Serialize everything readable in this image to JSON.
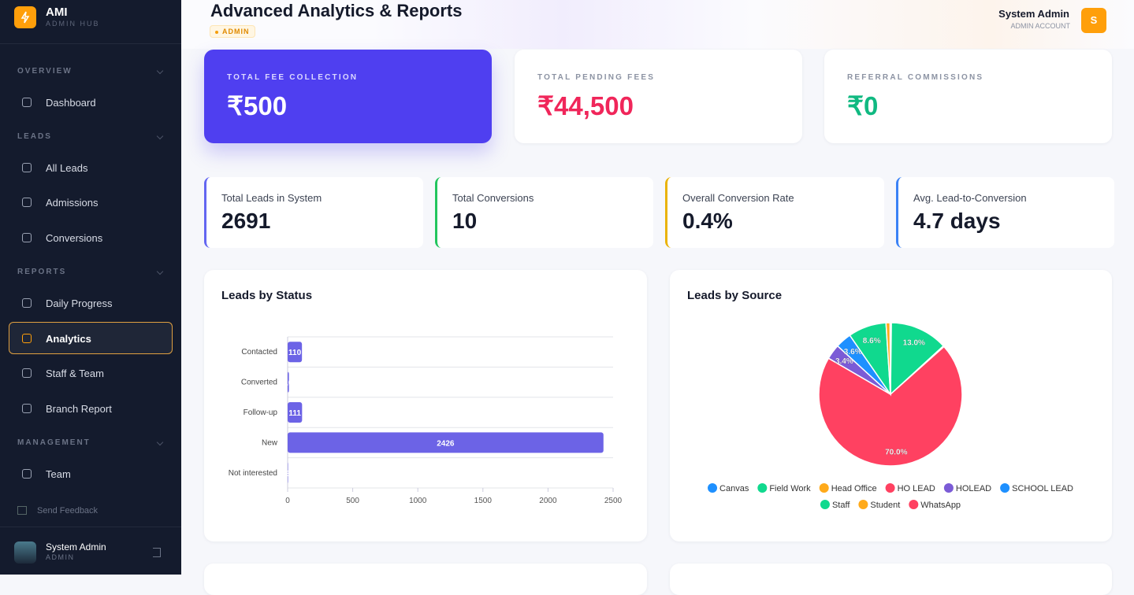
{
  "sidebar": {
    "brand": "AMI",
    "brand_sub": "ADMIN HUB",
    "sections": [
      {
        "title": "OVERVIEW",
        "items": [
          "Dashboard"
        ]
      },
      {
        "title": "LEADS",
        "items": [
          "All Leads",
          "Admissions",
          "Conversions"
        ]
      },
      {
        "title": "REPORTS",
        "items": [
          "Daily Progress",
          "Analytics",
          "Staff & Team",
          "Branch Report"
        ]
      },
      {
        "title": "MANAGEMENT",
        "items": [
          "Team"
        ]
      }
    ],
    "feedback": "Send Feedback",
    "user": {
      "name": "System Admin",
      "role": "ADMIN"
    }
  },
  "header": {
    "title": "Advanced Analytics & Reports",
    "badge": "ADMIN",
    "user_name": "System Admin",
    "user_role": "ADMIN ACCOUNT",
    "avatar": "S"
  },
  "summary_cards": [
    {
      "label": "TOTAL FEE COLLECTION",
      "value": "₹500"
    },
    {
      "label": "TOTAL PENDING FEES",
      "value": "₹44,500"
    },
    {
      "label": "REFERRAL COMMISSIONS",
      "value": "₹0"
    }
  ],
  "stats": [
    {
      "label": "Total Leads in System",
      "value": "2691"
    },
    {
      "label": "Total Conversions",
      "value": "10"
    },
    {
      "label": "Overall Conversion Rate",
      "value": "0.4%"
    },
    {
      "label": "Avg. Lead-to-Conversion",
      "value": "4.7 days"
    }
  ],
  "chart_data": [
    {
      "type": "bar",
      "orientation": "horizontal",
      "title": "Leads by Status",
      "categories": [
        "Contacted",
        "Converted",
        "Follow-up",
        "New",
        "Not interested"
      ],
      "values": [
        110,
        10,
        111,
        2426,
        3
      ],
      "color": "#6c63e6",
      "xlim": [
        0,
        2500
      ],
      "xticks": [
        0,
        500,
        1000,
        1500,
        2000,
        2500
      ],
      "grid": true
    },
    {
      "type": "pie",
      "title": "Leads by Source",
      "categories": [
        "Canvas",
        "Field Work",
        "Head Office",
        "HO LEAD",
        "HOLEAD",
        "SCHOOL LEAD",
        "Staff",
        "Student",
        "WhatsApp"
      ],
      "values": [
        0.2,
        13.0,
        0.2,
        70.0,
        3.4,
        3.6,
        8.6,
        0.9,
        0.1
      ],
      "value_labels": [
        null,
        "13.0%",
        null,
        "70.0%",
        "3.4%",
        "3.6%",
        "8.6%",
        null,
        null
      ],
      "colors": [
        "#1e90ff",
        "#10d98e",
        "#ffaa1a",
        "#ff4161",
        "#7b5bd6",
        "#1e90ff",
        "#10d98e",
        "#ffaa1a",
        "#ff4161"
      ],
      "legend": "bottom"
    }
  ]
}
